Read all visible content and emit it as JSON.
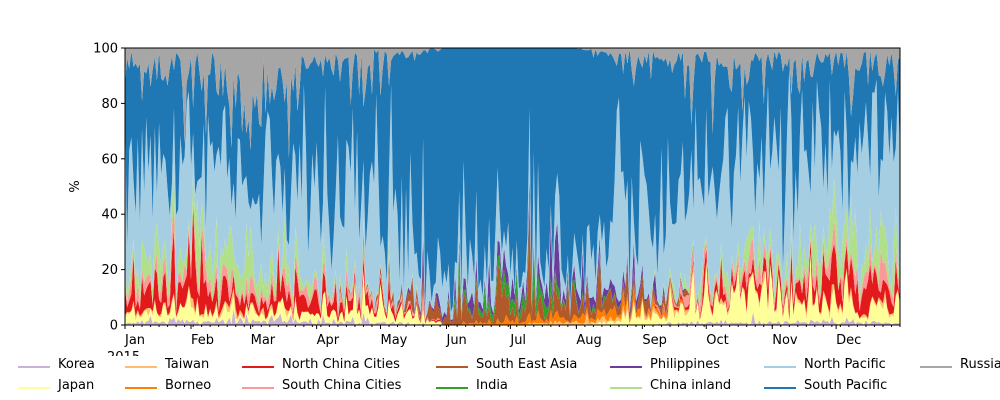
{
  "chart_data": {
    "type": "area",
    "stacked": true,
    "ylabel": "%",
    "ylim": [
      0,
      100
    ],
    "yticks": [
      0,
      20,
      40,
      60,
      80,
      100
    ],
    "x_range": [
      "2015-01-01",
      "2015-12-31"
    ],
    "x_ticks": [
      "Jan",
      "Feb",
      "Mar",
      "Apr",
      "May",
      "Jun",
      "Jul",
      "Aug",
      "Sep",
      "Oct",
      "Nov",
      "Dec"
    ],
    "x_offset_label": "2015",
    "grid": false,
    "legend_position": "bottom",
    "series": [
      {
        "name": "Korea",
        "color": "#cab2d6"
      },
      {
        "name": "Japan",
        "color": "#ffff99"
      },
      {
        "name": "Taiwan",
        "color": "#fdbf6f"
      },
      {
        "name": "Borneo",
        "color": "#ff7f00"
      },
      {
        "name": "North China Cities",
        "color": "#e31a1c"
      },
      {
        "name": "South China Cities",
        "color": "#fb9a99"
      },
      {
        "name": "South East Asia",
        "color": "#b15928"
      },
      {
        "name": "India",
        "color": "#33a02c"
      },
      {
        "name": "Philippines",
        "color": "#6a3d9a"
      },
      {
        "name": "China inland",
        "color": "#b2df8a"
      },
      {
        "name": "North Pacific",
        "color": "#a6cee3"
      },
      {
        "name": "South Pacific",
        "color": "#1f78b4"
      },
      {
        "name": "Russia",
        "color": "#a6a6a6"
      }
    ],
    "monthly_mean_share": {
      "Jan": [
        1,
        4,
        1,
        0,
        8,
        4,
        0,
        0,
        0,
        5,
        38,
        30,
        9
      ],
      "Feb": [
        1,
        5,
        1,
        0,
        10,
        5,
        0,
        0,
        0,
        8,
        32,
        28,
        10
      ],
      "Mar": [
        2,
        3,
        1,
        0,
        4,
        3,
        0,
        0,
        0,
        8,
        30,
        30,
        19
      ],
      "Apr": [
        1,
        3,
        0,
        0,
        5,
        3,
        0,
        0,
        0,
        2,
        36,
        44,
        6
      ],
      "May": [
        1,
        5,
        0,
        0,
        3,
        2,
        1,
        0,
        0,
        1,
        34,
        48,
        5
      ],
      "Jun": [
        0,
        0,
        0,
        0,
        0,
        0,
        4,
        0,
        2,
        0,
        10,
        84,
        0
      ],
      "Jul": [
        0,
        0,
        0,
        1,
        0,
        0,
        6,
        4,
        4,
        0,
        8,
        77,
        0
      ],
      "Aug": [
        0,
        0,
        1,
        2,
        0,
        0,
        4,
        1,
        3,
        0,
        10,
        79,
        0
      ],
      "Sep": [
        0,
        2,
        1,
        2,
        0,
        0,
        4,
        0,
        2,
        0,
        24,
        60,
        5
      ],
      "Oct": [
        1,
        8,
        1,
        0,
        2,
        3,
        0,
        0,
        0,
        3,
        40,
        36,
        6
      ],
      "Nov": [
        1,
        9,
        1,
        0,
        4,
        3,
        0,
        0,
        0,
        5,
        40,
        32,
        5
      ],
      "Dec": [
        1,
        6,
        1,
        0,
        7,
        4,
        0,
        0,
        0,
        10,
        38,
        27,
        6
      ]
    }
  }
}
